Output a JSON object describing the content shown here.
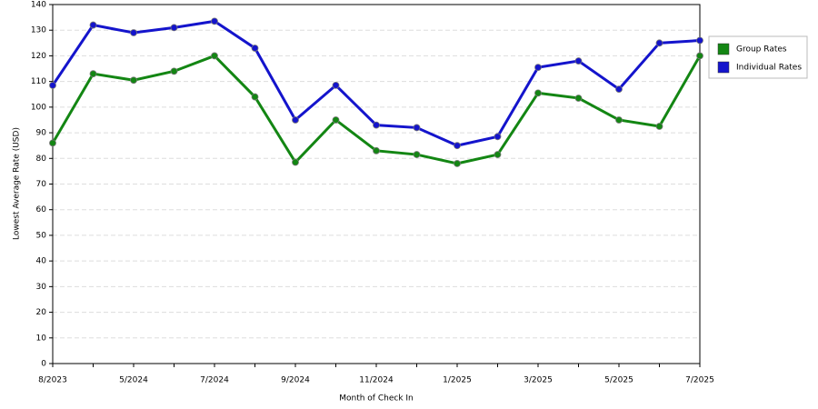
{
  "chart_data": {
    "type": "line",
    "x_label": "Month of Check In",
    "y_label": "Lowest Average Rate (USD)",
    "categories": [
      "8/2023",
      null,
      "5/2024",
      null,
      "7/2024",
      null,
      "9/2024",
      null,
      "11/2024",
      null,
      "1/2025",
      null,
      "3/2025",
      null,
      "5/2025",
      null,
      "7/2025"
    ],
    "series": [
      {
        "name": "Group Rates",
        "color": "#138613",
        "values": [
          86,
          113,
          110.5,
          114,
          120,
          104,
          78.5,
          95,
          83,
          81.5,
          78,
          81.5,
          105.5,
          103.5,
          95,
          92.5,
          120
        ]
      },
      {
        "name": "Individual Rates",
        "color": "#1414cc",
        "values": [
          108.5,
          132,
          129,
          131,
          133.5,
          123,
          95,
          108.5,
          93,
          92,
          85,
          88.5,
          115.5,
          118,
          107,
          125,
          126
        ]
      }
    ],
    "ylim": [
      0,
      140
    ],
    "yticks": [
      0,
      10,
      20,
      30,
      40,
      50,
      60,
      70,
      80,
      90,
      100,
      110,
      120,
      130,
      140
    ],
    "grid": true,
    "legend": "right"
  }
}
